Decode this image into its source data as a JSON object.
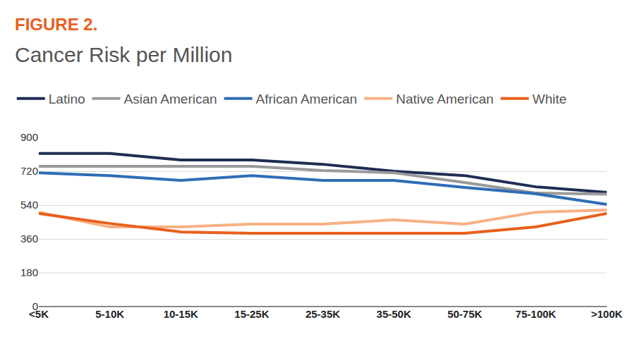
{
  "chart_data": {
    "type": "line",
    "title": "FIGURE 2.",
    "subtitle": "Cancer Risk per Million",
    "categories": [
      "<5K",
      "5-10K",
      "10-15K",
      "15-25K",
      "25-35K",
      "35-50K",
      "50-75K",
      "75-100K",
      ">100K"
    ],
    "series": [
      {
        "name": "Latino",
        "color": "#1f2d55",
        "values": [
          815,
          815,
          780,
          780,
          757,
          720,
          697,
          637,
          607
        ]
      },
      {
        "name": "Asian American",
        "color": "#9a9a9a",
        "values": [
          746,
          746,
          746,
          746,
          724,
          712,
          660,
          604,
          598
        ]
      },
      {
        "name": "African American",
        "color": "#2f6db5",
        "values": [
          712,
          697,
          671,
          697,
          671,
          671,
          634,
          600,
          544
        ]
      },
      {
        "name": "Native American",
        "color": "#f7b183",
        "values": [
          502,
          424,
          424,
          439,
          439,
          461,
          439,
          502,
          514
        ]
      },
      {
        "name": "White",
        "color": "#e8601c",
        "values": [
          495,
          442,
          397,
          390,
          390,
          390,
          390,
          424,
          495
        ]
      }
    ],
    "ylim": [
      0,
      900
    ],
    "yticks": [
      0,
      180,
      360,
      540,
      720,
      900
    ],
    "grid": true,
    "legend": "top"
  }
}
